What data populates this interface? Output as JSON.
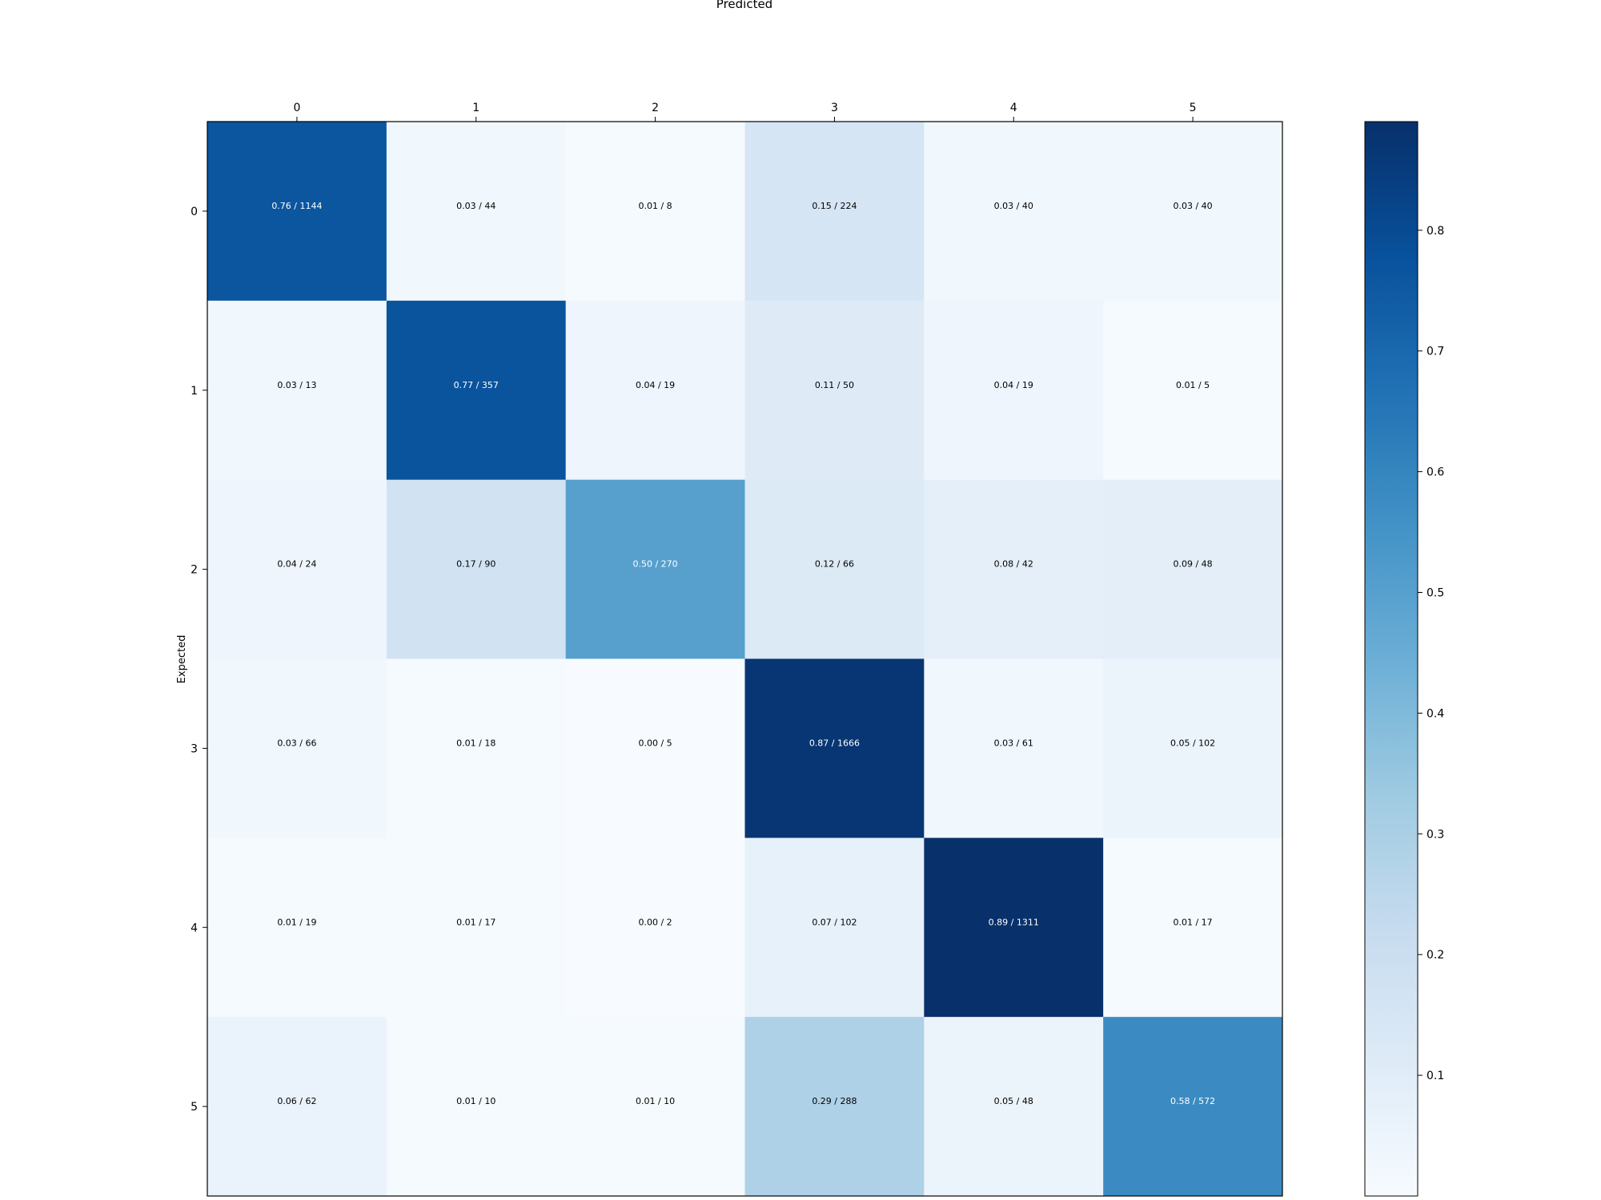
{
  "chart_data": {
    "type": "heatmap",
    "title": "",
    "xlabel": "Predicted",
    "ylabel": "Expected",
    "x_categories": [
      "0",
      "1",
      "2",
      "3",
      "4",
      "5"
    ],
    "y_categories": [
      "0",
      "1",
      "2",
      "3",
      "4",
      "5"
    ],
    "cells": [
      [
        {
          "value": 0.76,
          "label": "0.76 / 1144"
        },
        {
          "value": 0.03,
          "label": "0.03 / 44"
        },
        {
          "value": 0.01,
          "label": "0.01 / 8"
        },
        {
          "value": 0.15,
          "label": "0.15 / 224"
        },
        {
          "value": 0.03,
          "label": "0.03 / 40"
        },
        {
          "value": 0.03,
          "label": "0.03 / 40"
        }
      ],
      [
        {
          "value": 0.03,
          "label": "0.03 / 13"
        },
        {
          "value": 0.77,
          "label": "0.77 / 357"
        },
        {
          "value": 0.04,
          "label": "0.04 / 19"
        },
        {
          "value": 0.11,
          "label": "0.11 / 50"
        },
        {
          "value": 0.04,
          "label": "0.04 / 19"
        },
        {
          "value": 0.01,
          "label": "0.01 / 5"
        }
      ],
      [
        {
          "value": 0.04,
          "label": "0.04 / 24"
        },
        {
          "value": 0.17,
          "label": "0.17 / 90"
        },
        {
          "value": 0.5,
          "label": "0.50 / 270"
        },
        {
          "value": 0.12,
          "label": "0.12 / 66"
        },
        {
          "value": 0.08,
          "label": "0.08 / 42"
        },
        {
          "value": 0.09,
          "label": "0.09 / 48"
        }
      ],
      [
        {
          "value": 0.03,
          "label": "0.03 / 66"
        },
        {
          "value": 0.01,
          "label": "0.01 / 18"
        },
        {
          "value": 0.0,
          "label": "0.00 / 5"
        },
        {
          "value": 0.87,
          "label": "0.87 / 1666"
        },
        {
          "value": 0.03,
          "label": "0.03 / 61"
        },
        {
          "value": 0.05,
          "label": "0.05 / 102"
        }
      ],
      [
        {
          "value": 0.01,
          "label": "0.01 / 19"
        },
        {
          "value": 0.01,
          "label": "0.01 / 17"
        },
        {
          "value": 0.0,
          "label": "0.00 / 2"
        },
        {
          "value": 0.07,
          "label": "0.07 / 102"
        },
        {
          "value": 0.89,
          "label": "0.89 / 1311"
        },
        {
          "value": 0.01,
          "label": "0.01 / 17"
        }
      ],
      [
        {
          "value": 0.06,
          "label": "0.06 / 62"
        },
        {
          "value": 0.01,
          "label": "0.01 / 10"
        },
        {
          "value": 0.01,
          "label": "0.01 / 10"
        },
        {
          "value": 0.29,
          "label": "0.29 / 288"
        },
        {
          "value": 0.05,
          "label": "0.05 / 48"
        },
        {
          "value": 0.58,
          "label": "0.58 / 572"
        }
      ]
    ],
    "colorbar": {
      "colormap": "Blues",
      "range": [
        0.0,
        0.89
      ],
      "ticks": [
        "0.1",
        "0.2",
        "0.3",
        "0.4",
        "0.5",
        "0.6",
        "0.7",
        "0.8"
      ]
    },
    "x_axis_position": "top",
    "grid": false,
    "legend": "colorbar-right"
  }
}
